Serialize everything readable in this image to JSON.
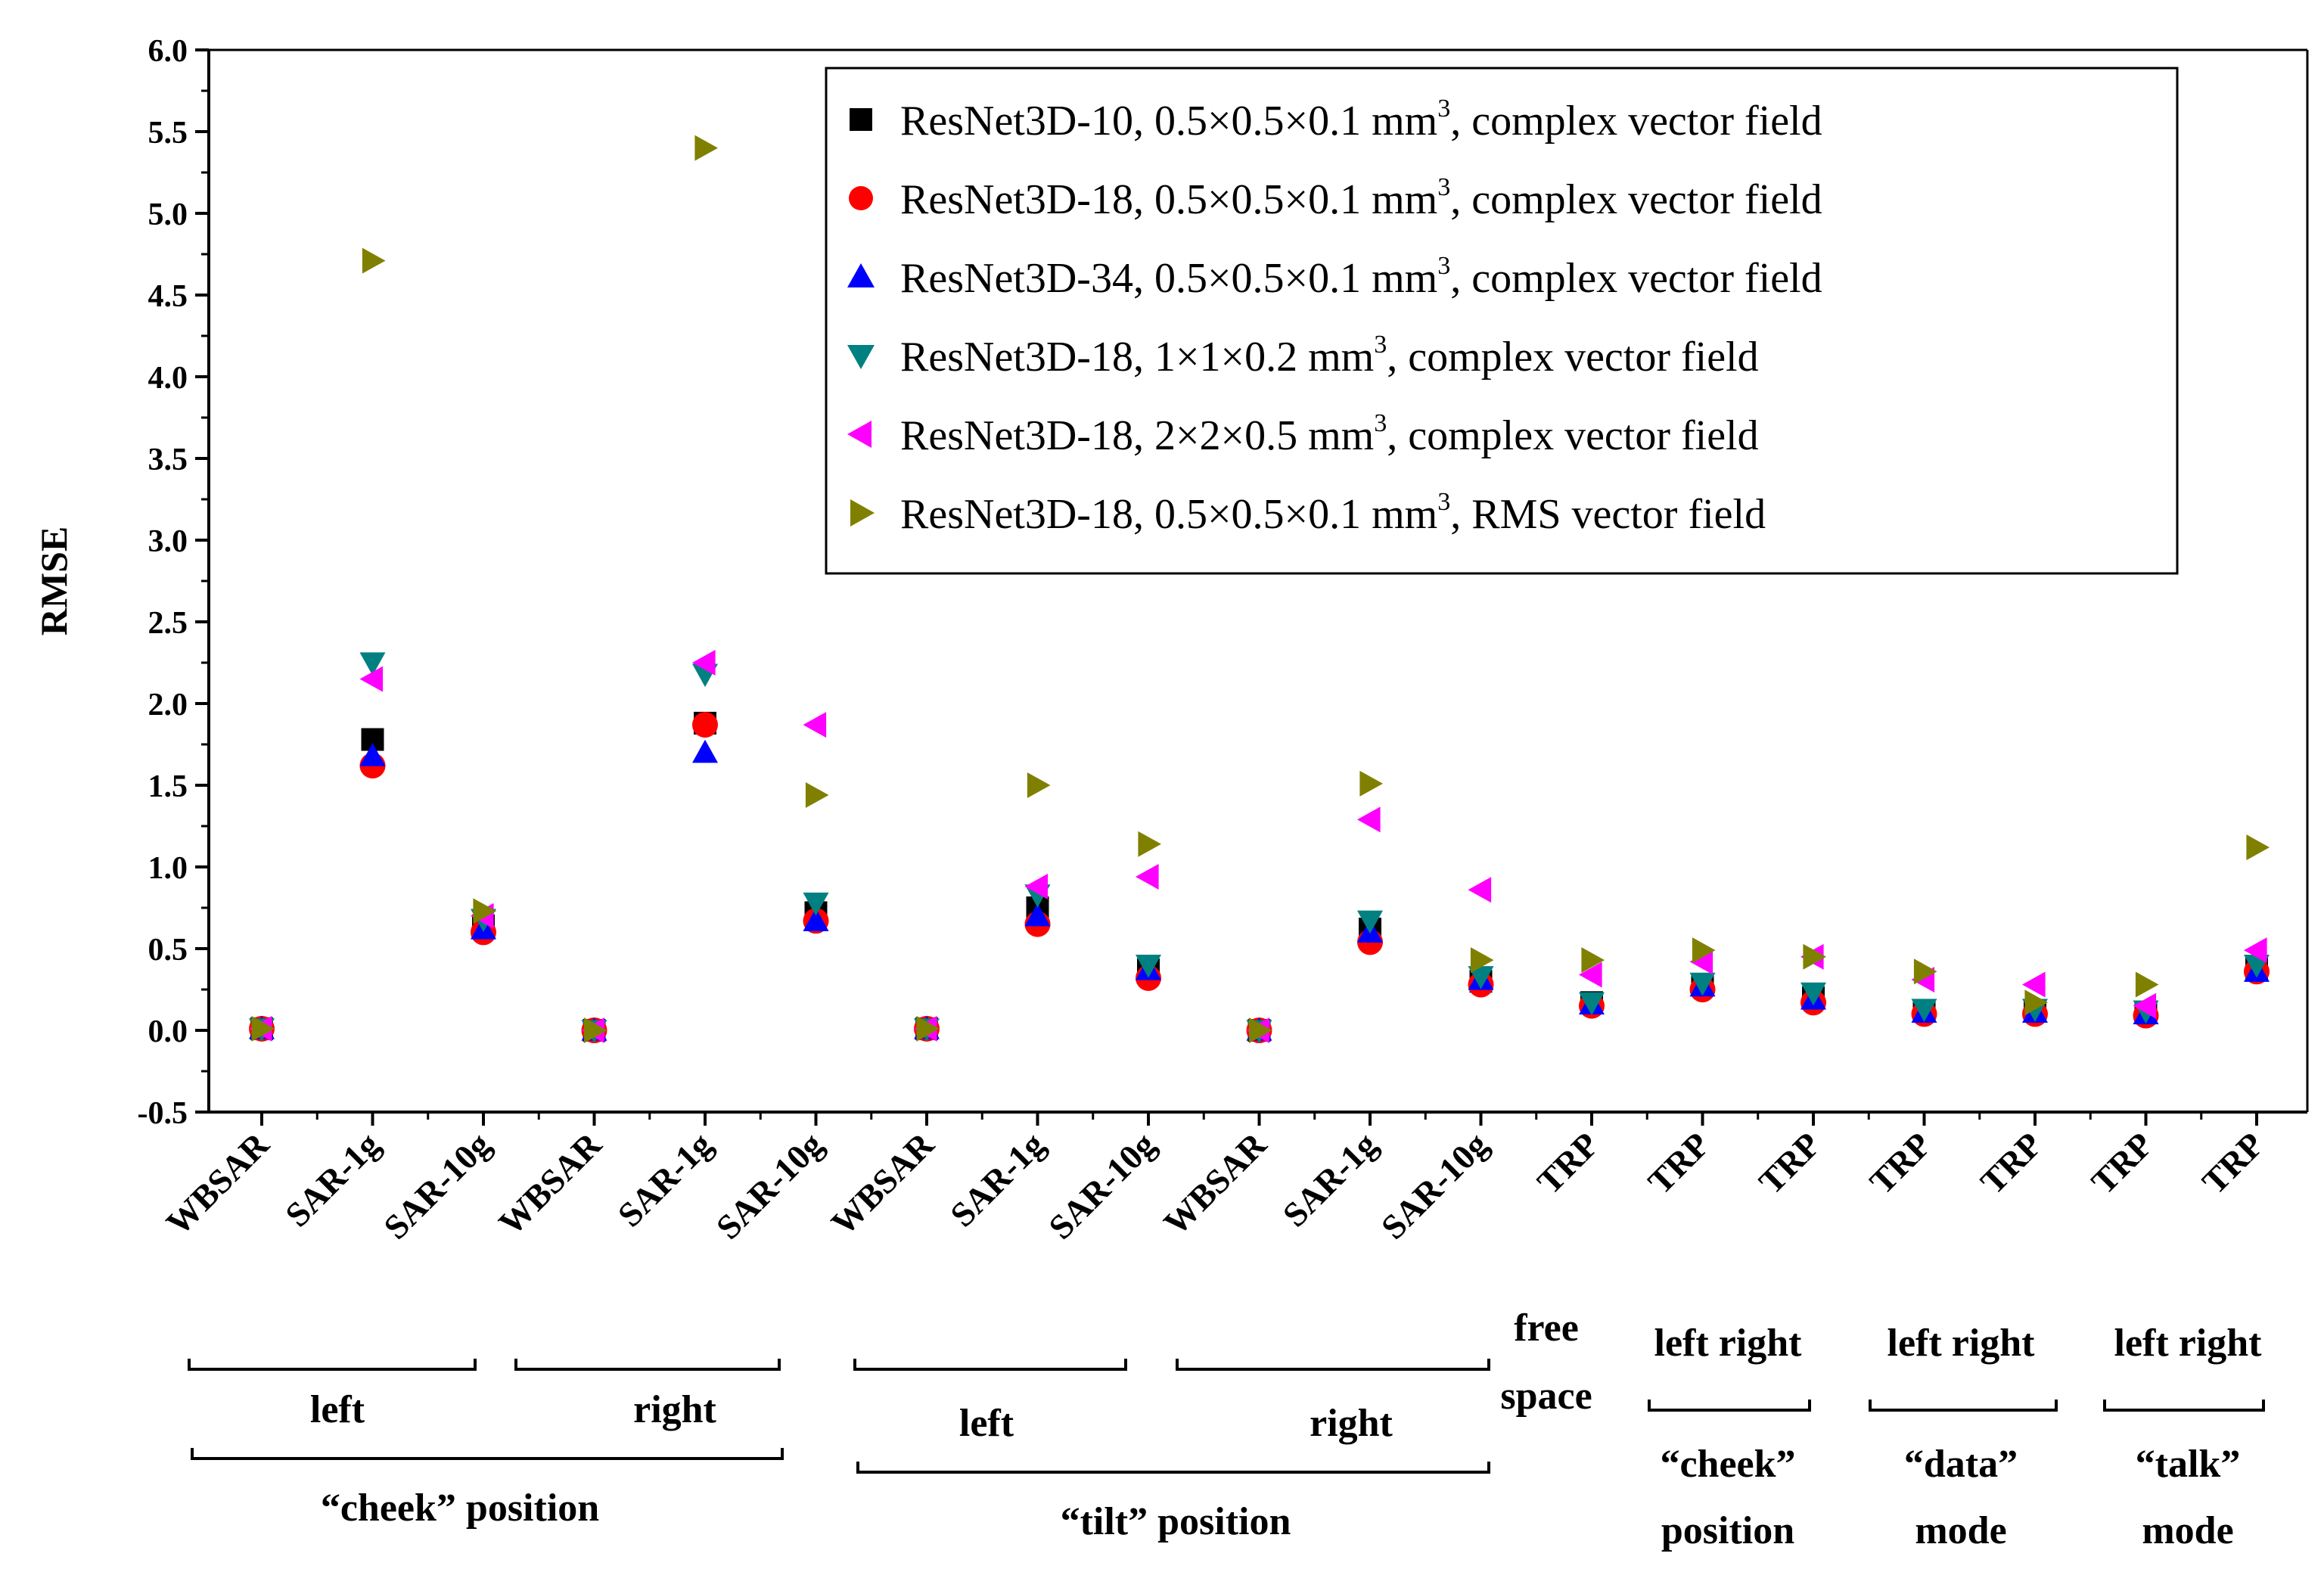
{
  "chart_data": {
    "type": "scatter",
    "ylabel": "RMSE",
    "xlabel": "",
    "ylim": [
      -0.5,
      6.0
    ],
    "yticks": [
      "-0.5",
      "0.0",
      "0.5",
      "1.0",
      "1.5",
      "2.0",
      "2.5",
      "3.0",
      "3.5",
      "4.0",
      "4.5",
      "5.0",
      "5.5",
      "6.0"
    ],
    "ytick_values": [
      -0.5,
      0.0,
      0.5,
      1.0,
      1.5,
      2.0,
      2.5,
      3.0,
      3.5,
      4.0,
      4.5,
      5.0,
      5.5,
      6.0
    ],
    "categories": [
      "WBSAR",
      "SAR-1g",
      "SAR-10g",
      "WBSAR",
      "SAR-1g",
      "SAR-10g",
      "WBSAR",
      "SAR-1g",
      "SAR-10g",
      "WBSAR",
      "SAR-1g",
      "SAR-10g",
      "TRP",
      "TRP",
      "TRP",
      "TRP",
      "TRP",
      "TRP",
      "TRP"
    ],
    "legend_position": "top-right",
    "series": [
      {
        "name": "ResNet3D-10, 0.5×0.5×0.1 mm",
        "sup": "3",
        "suffix": ", complex vector field",
        "marker": "square",
        "color": "#000000",
        "values": [
          0.01,
          1.78,
          0.64,
          0.0,
          1.88,
          0.72,
          0.01,
          0.75,
          0.37,
          0.0,
          0.62,
          0.3,
          0.17,
          0.28,
          0.2,
          0.12,
          0.12,
          0.11,
          0.38
        ]
      },
      {
        "name": "ResNet3D-18, 0.5×0.5×0.1 mm",
        "sup": "3",
        "suffix": ", complex vector field",
        "marker": "circle",
        "color": "#ff0000",
        "values": [
          0.01,
          1.62,
          0.6,
          0.0,
          1.87,
          0.67,
          0.01,
          0.65,
          0.32,
          0.0,
          0.54,
          0.28,
          0.15,
          0.25,
          0.17,
          0.1,
          0.1,
          0.09,
          0.36
        ]
      },
      {
        "name": "ResNet3D-34, 0.5×0.5×0.1 mm",
        "sup": "3",
        "suffix": ", complex vector field",
        "marker": "triangle-up",
        "color": "#0000ff",
        "values": [
          0.01,
          1.68,
          0.62,
          0.0,
          1.7,
          0.67,
          0.01,
          0.7,
          0.37,
          0.0,
          0.6,
          0.31,
          0.16,
          0.27,
          0.19,
          0.11,
          0.11,
          0.1,
          0.36
        ]
      },
      {
        "name": "ResNet3D-18, 1×1×0.2 mm",
        "sup": "3",
        "suffix": ", complex vector field",
        "marker": "triangle-down",
        "color": "#008080",
        "values": [
          0.01,
          2.25,
          0.68,
          0.0,
          2.18,
          0.78,
          0.01,
          0.83,
          0.4,
          0.0,
          0.67,
          0.33,
          0.17,
          0.29,
          0.23,
          0.13,
          0.13,
          0.12,
          0.4
        ]
      },
      {
        "name": "ResNet3D-18, 2×2×0.5 mm",
        "sup": "3",
        "suffix": ", complex vector field",
        "marker": "triangle-left",
        "color": "#ff00ff",
        "values": [
          0.01,
          2.15,
          0.7,
          0.0,
          2.25,
          1.87,
          0.01,
          0.88,
          0.94,
          0.0,
          1.29,
          0.86,
          0.34,
          0.42,
          0.45,
          0.31,
          0.28,
          0.15,
          0.49
        ]
      },
      {
        "name": "ResNet3D-18, 0.5×0.5×0.1 mm",
        "sup": "3",
        "suffix": ", RMS vector field",
        "marker": "triangle-right",
        "color": "#808000",
        "values": [
          0.01,
          4.71,
          0.73,
          0.0,
          5.4,
          1.44,
          0.01,
          1.5,
          1.14,
          0.0,
          1.51,
          0.43,
          0.43,
          0.49,
          0.45,
          0.36,
          0.17,
          0.28,
          1.12
        ]
      }
    ],
    "groups": {
      "sub": [
        {
          "label": "left",
          "from": 0,
          "to": 2
        },
        {
          "label": "right",
          "from": 3,
          "to": 5
        },
        {
          "label": "left",
          "from": 6,
          "to": 8
        },
        {
          "label": "right",
          "from": 9,
          "to": 11
        }
      ],
      "main": [
        {
          "label": "“cheek” position",
          "from": 0,
          "to": 5
        },
        {
          "label": "“tilt” position",
          "from": 6,
          "to": 11
        }
      ],
      "trp": [
        {
          "label": "free",
          "label2": "space",
          "from": 12,
          "to": 12,
          "bracket": false
        },
        {
          "top": "left right",
          "label": "“cheek”",
          "label2": "position",
          "from": 13,
          "to": 14,
          "bracket": true
        },
        {
          "top": "left right",
          "label": "“data”",
          "label2": "mode",
          "from": 15,
          "to": 16,
          "bracket": true
        },
        {
          "top": "left right",
          "label": "“talk”",
          "label2": "mode",
          "from": 17,
          "to": 18,
          "bracket": true
        }
      ]
    }
  }
}
